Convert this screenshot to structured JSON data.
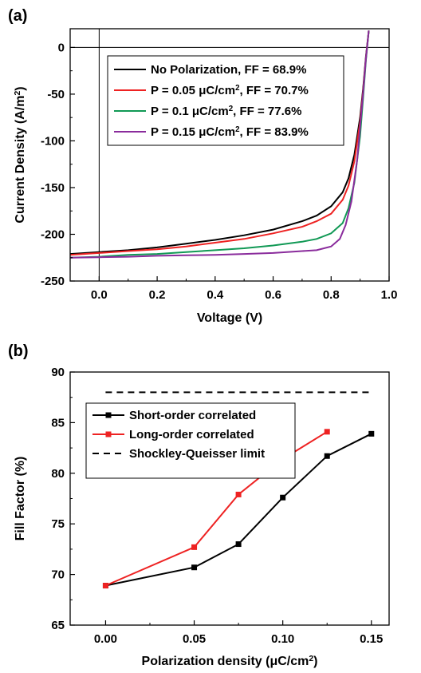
{
  "panel_a_label": "(a)",
  "panel_b_label": "(b)",
  "chart_data": [
    {
      "type": "line",
      "xlabel": "Voltage (V)",
      "ylabel": "Current Density (A/m²)",
      "xlim": [
        -0.1,
        1.0
      ],
      "ylim": [
        -250,
        20
      ],
      "xticks": [
        "0.0",
        "0.2",
        "0.4",
        "0.6",
        "0.8",
        "1.0"
      ],
      "yticks": [
        "0",
        "-50",
        "-100",
        "-150",
        "-200",
        "-250"
      ],
      "reference_lines": [
        "y = 0",
        "x = 0"
      ],
      "grid": false,
      "legend_position": "top-center",
      "series": [
        {
          "name": "No Polarization, FF = 68.9%",
          "color": "#000000",
          "x": [
            -0.1,
            0.0,
            0.1,
            0.2,
            0.3,
            0.4,
            0.5,
            0.6,
            0.7,
            0.75,
            0.8,
            0.84,
            0.86,
            0.88,
            0.9,
            0.91,
            0.92,
            0.93
          ],
          "y": [
            -221,
            -219,
            -217,
            -214,
            -210,
            -206,
            -201,
            -195,
            -186,
            -180,
            -170,
            -155,
            -140,
            -115,
            -75,
            -45,
            -10,
            18
          ]
        },
        {
          "name": "P = 0.05 μC/cm², FF = 70.7%",
          "color": "#ee2222",
          "x": [
            -0.1,
            0.0,
            0.1,
            0.2,
            0.3,
            0.4,
            0.5,
            0.6,
            0.7,
            0.75,
            0.8,
            0.84,
            0.86,
            0.88,
            0.9,
            0.91,
            0.92,
            0.93
          ],
          "y": [
            -222,
            -220,
            -218,
            -216,
            -213,
            -209,
            -205,
            -199,
            -192,
            -186,
            -178,
            -163,
            -148,
            -122,
            -80,
            -48,
            -12,
            18
          ]
        },
        {
          "name": "P = 0.1 μC/cm², FF = 77.6%",
          "color": "#119955",
          "x": [
            -0.1,
            0.0,
            0.1,
            0.2,
            0.3,
            0.4,
            0.5,
            0.6,
            0.7,
            0.75,
            0.8,
            0.84,
            0.86,
            0.88,
            0.9,
            0.91,
            0.92,
            0.93
          ],
          "y": [
            -225,
            -224,
            -222,
            -221,
            -219,
            -217,
            -215,
            -212,
            -208,
            -205,
            -199,
            -188,
            -172,
            -145,
            -95,
            -55,
            -14,
            18
          ]
        },
        {
          "name": "P = 0.15 μC/cm², FF = 83.9%",
          "color": "#8a2c9c",
          "x": [
            -0.1,
            0.0,
            0.1,
            0.2,
            0.3,
            0.4,
            0.5,
            0.6,
            0.7,
            0.75,
            0.8,
            0.83,
            0.85,
            0.87,
            0.89,
            0.9,
            0.91,
            0.92,
            0.93
          ],
          "y": [
            -225,
            -224.5,
            -224,
            -223,
            -222.5,
            -222,
            -221,
            -220,
            -218,
            -217,
            -213,
            -205,
            -190,
            -165,
            -120,
            -85,
            -50,
            -12,
            18
          ]
        }
      ]
    },
    {
      "type": "line",
      "xlabel": "Polarization density (μC/cm²)",
      "ylabel": "Fill Factor (%)",
      "xlim": [
        -0.02,
        0.16
      ],
      "ylim": [
        65,
        90
      ],
      "xticks": [
        "0.00",
        "0.05",
        "0.10",
        "0.15"
      ],
      "yticks": [
        "65",
        "70",
        "75",
        "80",
        "85",
        "90"
      ],
      "grid": false,
      "legend_position": "top-left",
      "series": [
        {
          "name": "Short-order correlated",
          "color": "#000000",
          "marker": "square",
          "x": [
            0.0,
            0.05,
            0.075,
            0.1,
            0.125,
            0.15
          ],
          "y": [
            68.9,
            70.7,
            73.0,
            77.6,
            81.7,
            83.9
          ]
        },
        {
          "name": "Long-order correlated",
          "color": "#ee2222",
          "marker": "square",
          "x": [
            0.0,
            0.05,
            0.075,
            0.1,
            0.125
          ],
          "y": [
            68.9,
            72.7,
            77.9,
            81.4,
            84.1
          ]
        },
        {
          "name": "Shockley-Queisser limit",
          "color": "#000000",
          "dashed": true,
          "x": [
            0.0,
            0.15
          ],
          "y": [
            88.0,
            88.0
          ]
        }
      ]
    }
  ]
}
